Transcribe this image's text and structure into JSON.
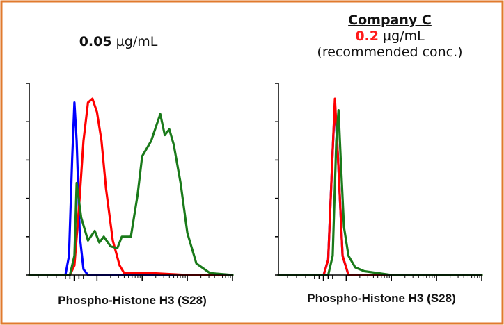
{
  "left_title": {
    "value": "0.05",
    "unit": "µg/mL"
  },
  "right_title": {
    "company": "Company C",
    "value": "0.2",
    "unit": "µg/mL",
    "note": "(recommended conc.)"
  },
  "colors": {
    "frame": "#E07A2E",
    "blue": "#0000FF",
    "red": "#FF0000",
    "green": "#1A7A1A",
    "highlight": "#FF1A1A"
  },
  "chart_data": [
    {
      "type": "line",
      "xlabel": "Phospho-Histone H3 (S28)",
      "ylabel": "",
      "title": "",
      "x_scale": "log",
      "xlim": [
        -0.5,
        4
      ],
      "ylim": [
        0,
        100
      ],
      "series": [
        {
          "color": "blue",
          "x": [
            -0.5,
            0.3,
            0.38,
            0.45,
            0.5,
            0.55,
            0.62,
            0.7,
            0.8,
            4
          ],
          "y": [
            0,
            0,
            10,
            60,
            90,
            70,
            20,
            3,
            0,
            0
          ]
        },
        {
          "color": "red",
          "x": [
            -0.5,
            0.4,
            0.5,
            0.6,
            0.7,
            0.8,
            0.9,
            1.0,
            1.1,
            1.2,
            1.35,
            1.5,
            1.6,
            1.8,
            2.2,
            3.0,
            4
          ],
          "y": [
            0,
            0,
            5,
            35,
            70,
            90,
            92,
            85,
            70,
            45,
            18,
            5,
            1,
            1,
            1,
            0,
            0
          ]
        },
        {
          "color": "green",
          "x": [
            -0.5,
            0.4,
            0.5,
            0.55,
            0.65,
            0.8,
            0.95,
            1.05,
            1.15,
            1.3,
            1.45,
            1.55,
            1.75,
            1.9,
            2.0,
            2.2,
            2.4,
            2.5,
            2.6,
            2.7,
            2.85,
            3.0,
            3.2,
            3.5,
            4
          ],
          "y": [
            0,
            0,
            10,
            48,
            30,
            18,
            23,
            17,
            20,
            15,
            14,
            20,
            20,
            42,
            62,
            70,
            84,
            73,
            76,
            68,
            48,
            22,
            6,
            1,
            0
          ]
        }
      ]
    },
    {
      "type": "line",
      "xlabel": "Phospho-Histone H3 (S28)",
      "ylabel": "",
      "title": "",
      "x_scale": "log",
      "xlim": [
        -0.5,
        4
      ],
      "ylim": [
        0,
        100
      ],
      "series": [
        {
          "color": "blue",
          "x": [
            -0.5,
            0.5,
            0.6,
            0.7,
            0.75,
            0.82,
            0.92,
            1.05,
            4
          ],
          "y": [
            0,
            0,
            8,
            65,
            90,
            60,
            10,
            0,
            0
          ]
        },
        {
          "color": "red",
          "x": [
            -0.5,
            0.5,
            0.6,
            0.7,
            0.75,
            0.82,
            0.92,
            1.05,
            4
          ],
          "y": [
            0,
            0,
            8,
            65,
            92,
            60,
            10,
            0,
            0
          ]
        },
        {
          "color": "green",
          "x": [
            -0.5,
            0.6,
            0.7,
            0.78,
            0.83,
            0.88,
            0.95,
            1.05,
            1.2,
            1.4,
            1.7,
            2.0,
            4
          ],
          "y": [
            0,
            0,
            10,
            70,
            86,
            60,
            25,
            10,
            4,
            2,
            1,
            0,
            0
          ]
        }
      ]
    }
  ]
}
